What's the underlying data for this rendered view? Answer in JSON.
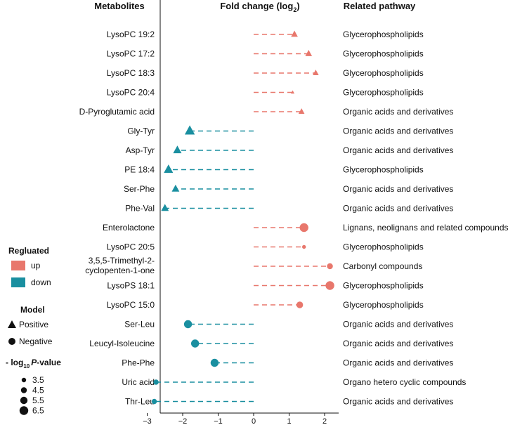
{
  "chart_data": {
    "type": "scatter",
    "headers": {
      "metabolites": "Metabolites",
      "fold_change_prefix": "Fold change (log",
      "fold_change_sub": "2",
      "fold_change_suffix": ")",
      "pathway": "Related pathway"
    },
    "xlim": [
      -3,
      2.4
    ],
    "xticks": [
      -3,
      -2,
      -1,
      0,
      1,
      2
    ],
    "xtick_labels": [
      "−3",
      "−2",
      "−1",
      "0",
      "1",
      "2"
    ],
    "colors": {
      "up": "#e8776c",
      "down": "#1a8fa0"
    },
    "rows": [
      {
        "metabolite": "LysoPC 19:2",
        "fc": 1.15,
        "regulated": "up",
        "model": "Positive",
        "pval": 4.5,
        "pathway": "Glycerophospholipids"
      },
      {
        "metabolite": "LysoPC 17:2",
        "fc": 1.55,
        "regulated": "up",
        "model": "Positive",
        "pval": 4.5,
        "pathway": "Glycerophospholipids"
      },
      {
        "metabolite": "LysoPC 18:3",
        "fc": 1.75,
        "regulated": "up",
        "model": "Positive",
        "pval": 4.0,
        "pathway": "Glycerophospholipids"
      },
      {
        "metabolite": "LysoPC 20:4",
        "fc": 1.1,
        "regulated": "up",
        "model": "Positive",
        "pval": 2.5,
        "pathway": "Glycerophospholipids"
      },
      {
        "metabolite": "D-Pyroglutamic acid",
        "fc": 1.35,
        "regulated": "up",
        "model": "Positive",
        "pval": 4.0,
        "pathway": "Organic acids and derivatives"
      },
      {
        "metabolite": "Gly-Tyr",
        "fc": -1.8,
        "regulated": "down",
        "model": "Positive",
        "pval": 6.5,
        "pathway": "Organic acids and derivatives"
      },
      {
        "metabolite": "Asp-Tyr",
        "fc": -2.15,
        "regulated": "down",
        "model": "Positive",
        "pval": 5.5,
        "pathway": "Organic acids and derivatives"
      },
      {
        "metabolite": "PE 18:4",
        "fc": -2.4,
        "regulated": "down",
        "model": "Positive",
        "pval": 6.0,
        "pathway": "Glycerophospholipids"
      },
      {
        "metabolite": "Ser-Phe",
        "fc": -2.2,
        "regulated": "down",
        "model": "Positive",
        "pval": 5.0,
        "pathway": "Organic acids and derivatives"
      },
      {
        "metabolite": "Phe-Val",
        "fc": -2.5,
        "regulated": "down",
        "model": "Positive",
        "pval": 5.0,
        "pathway": "Organic acids and derivatives"
      },
      {
        "metabolite": "Enterolactone",
        "fc": 1.42,
        "regulated": "up",
        "model": "Negative",
        "pval": 6.5,
        "pathway": "Lignans, neolignans and related compounds"
      },
      {
        "metabolite": "LysoPC 20:5",
        "fc": 1.42,
        "regulated": "up",
        "model": "Negative",
        "pval": 3.0,
        "pathway": "Glycerophospholipids"
      },
      {
        "metabolite": "3,5,5-Trimethyl-2-cyclopenten-1-one",
        "fc": 2.15,
        "regulated": "up",
        "model": "Negative",
        "pval": 4.5,
        "pathway": "Carbonyl compounds"
      },
      {
        "metabolite": "LysoPS 18:1",
        "fc": 2.15,
        "regulated": "up",
        "model": "Negative",
        "pval": 6.5,
        "pathway": "Glycerophospholipids"
      },
      {
        "metabolite": "LysoPC 15:0",
        "fc": 1.3,
        "regulated": "up",
        "model": "Negative",
        "pval": 5.0,
        "pathway": "Glycerophospholipids"
      },
      {
        "metabolite": "Ser-Leu",
        "fc": -1.85,
        "regulated": "down",
        "model": "Negative",
        "pval": 6.0,
        "pathway": "Organic acids and derivatives"
      },
      {
        "metabolite": "Leucyl-Isoleucine",
        "fc": -1.65,
        "regulated": "down",
        "model": "Negative",
        "pval": 6.0,
        "pathway": "Organic acids and derivatives"
      },
      {
        "metabolite": "Phe-Phe",
        "fc": -1.1,
        "regulated": "down",
        "model": "Negative",
        "pval": 6.0,
        "pathway": "Organic acids and derivatives"
      },
      {
        "metabolite": "Uric acid",
        "fc": -2.75,
        "regulated": "down",
        "model": "Negative",
        "pval": 4.0,
        "pathway": "Organo hetero cyclic compounds"
      },
      {
        "metabolite": "Thr-Leu",
        "fc": -2.8,
        "regulated": "down",
        "model": "Negative",
        "pval": 4.0,
        "pathway": "Organic acids and derivatives"
      }
    ],
    "legend": {
      "regulated_title": "Regluated",
      "regulated_items": [
        {
          "label": "up",
          "key": "up"
        },
        {
          "label": "down",
          "key": "down"
        }
      ],
      "model_title": "Model",
      "model_items": [
        {
          "label": "Positive",
          "shape": "triangle"
        },
        {
          "label": "Negative",
          "shape": "circle"
        }
      ],
      "pval_title_prefix": "- log",
      "pval_title_sub": "10",
      "pval_title_italic": "P",
      "pval_title_suffix": "-value",
      "pval_items": [
        {
          "label": "3.5",
          "value": 3.5
        },
        {
          "label": "4.5",
          "value": 4.5
        },
        {
          "label": "5.5",
          "value": 5.5
        },
        {
          "label": "6.5",
          "value": 6.5
        }
      ]
    }
  }
}
